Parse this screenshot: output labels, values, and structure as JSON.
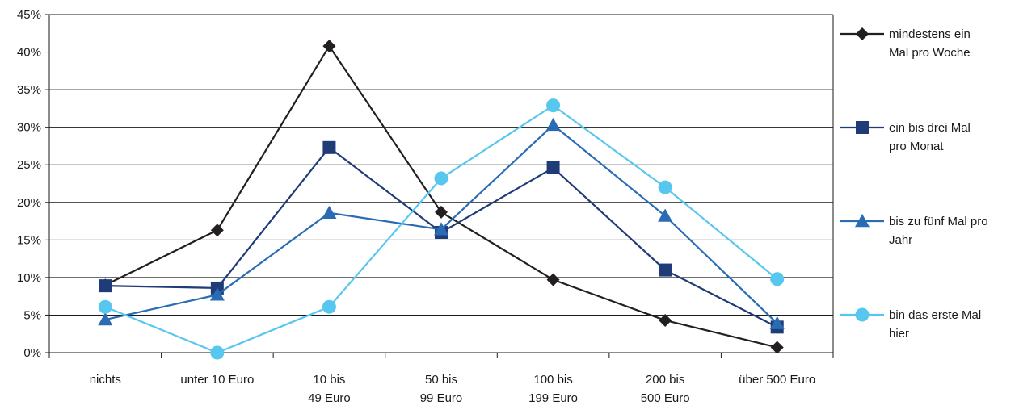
{
  "chart_data": {
    "type": "line",
    "title": "",
    "xlabel": "",
    "ylabel": "",
    "categories": [
      [
        "nichts"
      ],
      [
        "unter 10 Euro"
      ],
      [
        "10 bis",
        "49 Euro"
      ],
      [
        "50 bis",
        "99 Euro"
      ],
      [
        "100 bis",
        "199 Euro"
      ],
      [
        "200  bis",
        "500 Euro"
      ],
      [
        "über 500 Euro"
      ]
    ],
    "ylim": [
      0,
      45
    ],
    "yticks": [
      "0%",
      "5%",
      "10%",
      "15%",
      "20%",
      "25%",
      "30%",
      "35%",
      "40%",
      "45%"
    ],
    "grid": true,
    "legend_position": "right",
    "series": [
      {
        "name": [
          "mindestens ein",
          "Mal pro Woche"
        ],
        "marker": "diamond",
        "color": "#231f20",
        "values": [
          9.0,
          16.3,
          40.8,
          18.7,
          9.7,
          4.3,
          0.7
        ]
      },
      {
        "name": [
          "ein bis drei Mal",
          "pro Monat"
        ],
        "marker": "square",
        "color": "#1f3b78",
        "values": [
          8.9,
          8.6,
          27.3,
          16.0,
          24.6,
          11.0,
          3.4
        ]
      },
      {
        "name": [
          "bis zu fünf Mal pro",
          "Jahr"
        ],
        "marker": "triangle",
        "color": "#2a6cb3",
        "values": [
          4.4,
          7.7,
          18.6,
          16.4,
          30.3,
          18.2,
          3.9
        ]
      },
      {
        "name": [
          "bin das erste Mal",
          "hier"
        ],
        "marker": "circle",
        "color": "#57c7ef",
        "values": [
          6.1,
          0.0,
          6.1,
          23.2,
          32.9,
          22.0,
          9.8
        ]
      }
    ]
  }
}
